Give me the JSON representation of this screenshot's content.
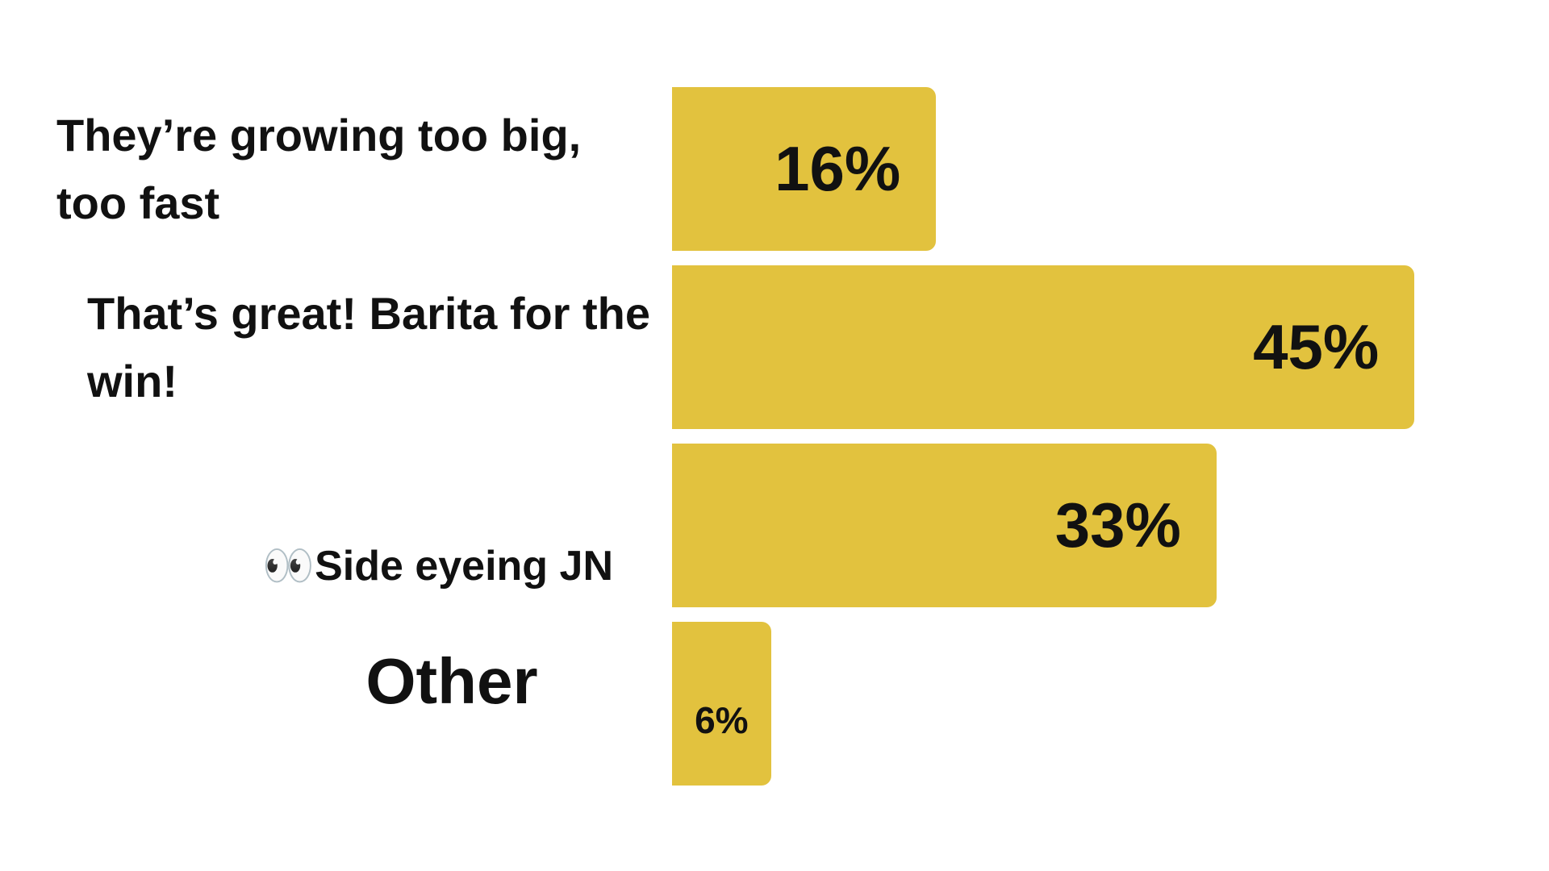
{
  "chart_data": {
    "type": "bar",
    "orientation": "horizontal",
    "categories": [
      "They’re growing too big, too fast",
      "That’s great! Barita for the win!",
      "👀Side eyeing JN",
      "Other"
    ],
    "values": [
      16,
      45,
      33,
      6
    ],
    "value_labels": [
      "16%",
      "45%",
      "33%",
      "6%"
    ],
    "color": "#e2c23e"
  }
}
